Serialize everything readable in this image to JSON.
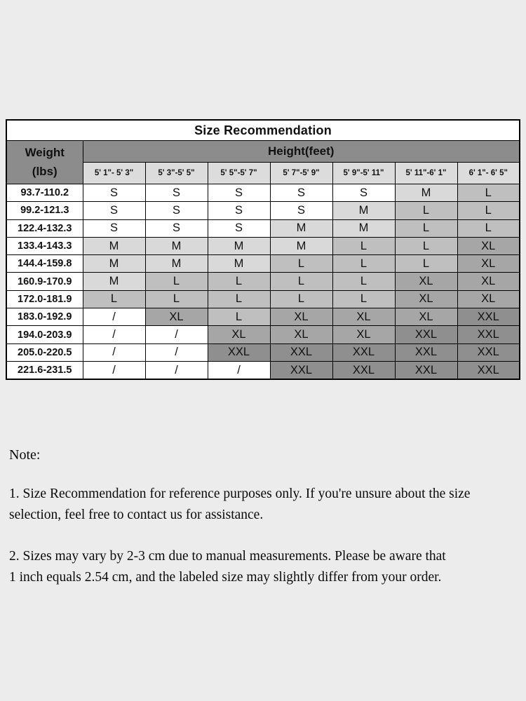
{
  "page": {
    "background": "#ececec"
  },
  "table": {
    "title": "Size Recommendation",
    "weight_header_line1": "Weight",
    "weight_header_line2": "(lbs)",
    "height_header": "Height(feet)",
    "height_columns": [
      "5' 1\"- 5' 3\"",
      "5' 3\"-5' 5\"",
      "5' 5\"-5' 7\"",
      "5' 7\"-5' 9\"",
      "5' 9\"-5' 11\"",
      "5' 11\"-6' 1\"",
      "6' 1\"- 6' 5\""
    ],
    "rows": [
      {
        "weight": "93.7-110.2",
        "sizes": [
          "S",
          "S",
          "S",
          "S",
          "S",
          "M",
          "L"
        ]
      },
      {
        "weight": "99.2-121.3",
        "sizes": [
          "S",
          "S",
          "S",
          "S",
          "M",
          "L",
          "L"
        ]
      },
      {
        "weight": "122.4-132.3",
        "sizes": [
          "S",
          "S",
          "S",
          "M",
          "M",
          "L",
          "L"
        ]
      },
      {
        "weight": "133.4-143.3",
        "sizes": [
          "M",
          "M",
          "M",
          "M",
          "L",
          "L",
          "XL"
        ]
      },
      {
        "weight": "144.4-159.8",
        "sizes": [
          "M",
          "M",
          "M",
          "L",
          "L",
          "L",
          "XL"
        ]
      },
      {
        "weight": "160.9-170.9",
        "sizes": [
          "M",
          "L",
          "L",
          "L",
          "L",
          "XL",
          "XL"
        ]
      },
      {
        "weight": "172.0-181.9",
        "sizes": [
          "L",
          "L",
          "L",
          "L",
          "L",
          "XL",
          "XL"
        ]
      },
      {
        "weight": "183.0-192.9",
        "sizes": [
          "/",
          "XL",
          "L",
          "XL",
          "XL",
          "XL",
          "XXL"
        ]
      },
      {
        "weight": "194.0-203.9",
        "sizes": [
          "/",
          "/",
          "XL",
          "XL",
          "XL",
          "XXL",
          "XXL"
        ]
      },
      {
        "weight": "205.0-220.5",
        "sizes": [
          "/",
          "/",
          "XXL",
          "XXL",
          "XXL",
          "XXL",
          "XXL"
        ]
      },
      {
        "weight": "221.6-231.5",
        "sizes": [
          "/",
          "/",
          "/",
          "XXL",
          "XXL",
          "XXL",
          "XXL"
        ]
      }
    ],
    "size_colors": {
      "S": "#ffffff",
      "M": "#d9d9d9",
      "L": "#bfbfbf",
      "XL": "#a6a6a6",
      "XXL": "#8f8f8f",
      "/": "#ffffff"
    },
    "colors": {
      "header_gray": "#8c8c8c",
      "subheader_gray": "#dcdcdc",
      "page_bg": "#ececec",
      "border": "#000000"
    }
  },
  "notes": {
    "label": "Note:",
    "items": [
      "1. Size Recommendation for reference purposes only. If you're unsure about the size\nselection, feel free to contact us for assistance.",
      "2. Sizes may vary by 2-3 cm due to manual measurements. Please be aware that\n1 inch equals 2.54 cm, and the labeled size may slightly differ from your order."
    ]
  }
}
